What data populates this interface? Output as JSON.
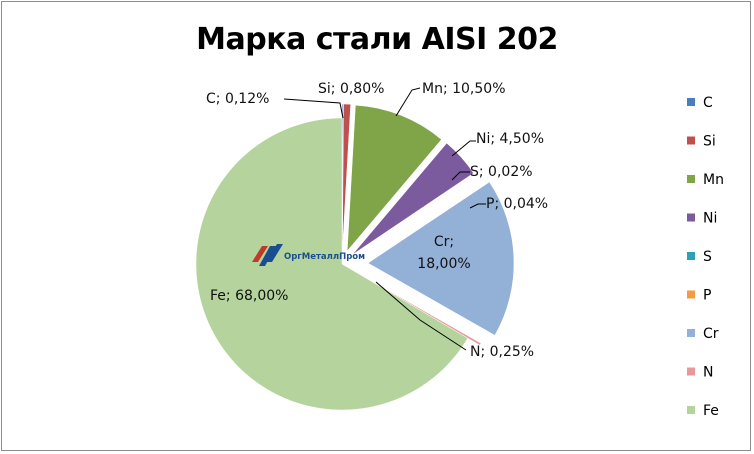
{
  "chart_data": {
    "type": "pie",
    "title": "Марка стали AISI 202",
    "categories": [
      "C",
      "Si",
      "Mn",
      "Ni",
      "S",
      "P",
      "Cr",
      "N",
      "Fe"
    ],
    "values": [
      0.12,
      0.8,
      10.5,
      4.5,
      0.02,
      0.04,
      18.0,
      0.25,
      68.0
    ],
    "labels": [
      "C; 0,12%",
      "Si; 0,80%",
      "Mn; 10,50%",
      "Ni; 4,50%",
      "S; 0,02%",
      "P; 0,04%",
      "Cr; 18,00%",
      "N; 0,25%",
      "Fe; 68,00%"
    ],
    "colors": [
      "#4a7ebb",
      "#c0504d",
      "#7fa548",
      "#7b5a9e",
      "#2aa3b8",
      "#f59b43",
      "#93b1d7",
      "#e89896",
      "#b5d39c"
    ],
    "legend": "right"
  },
  "watermark": "ОргМеталлПром"
}
